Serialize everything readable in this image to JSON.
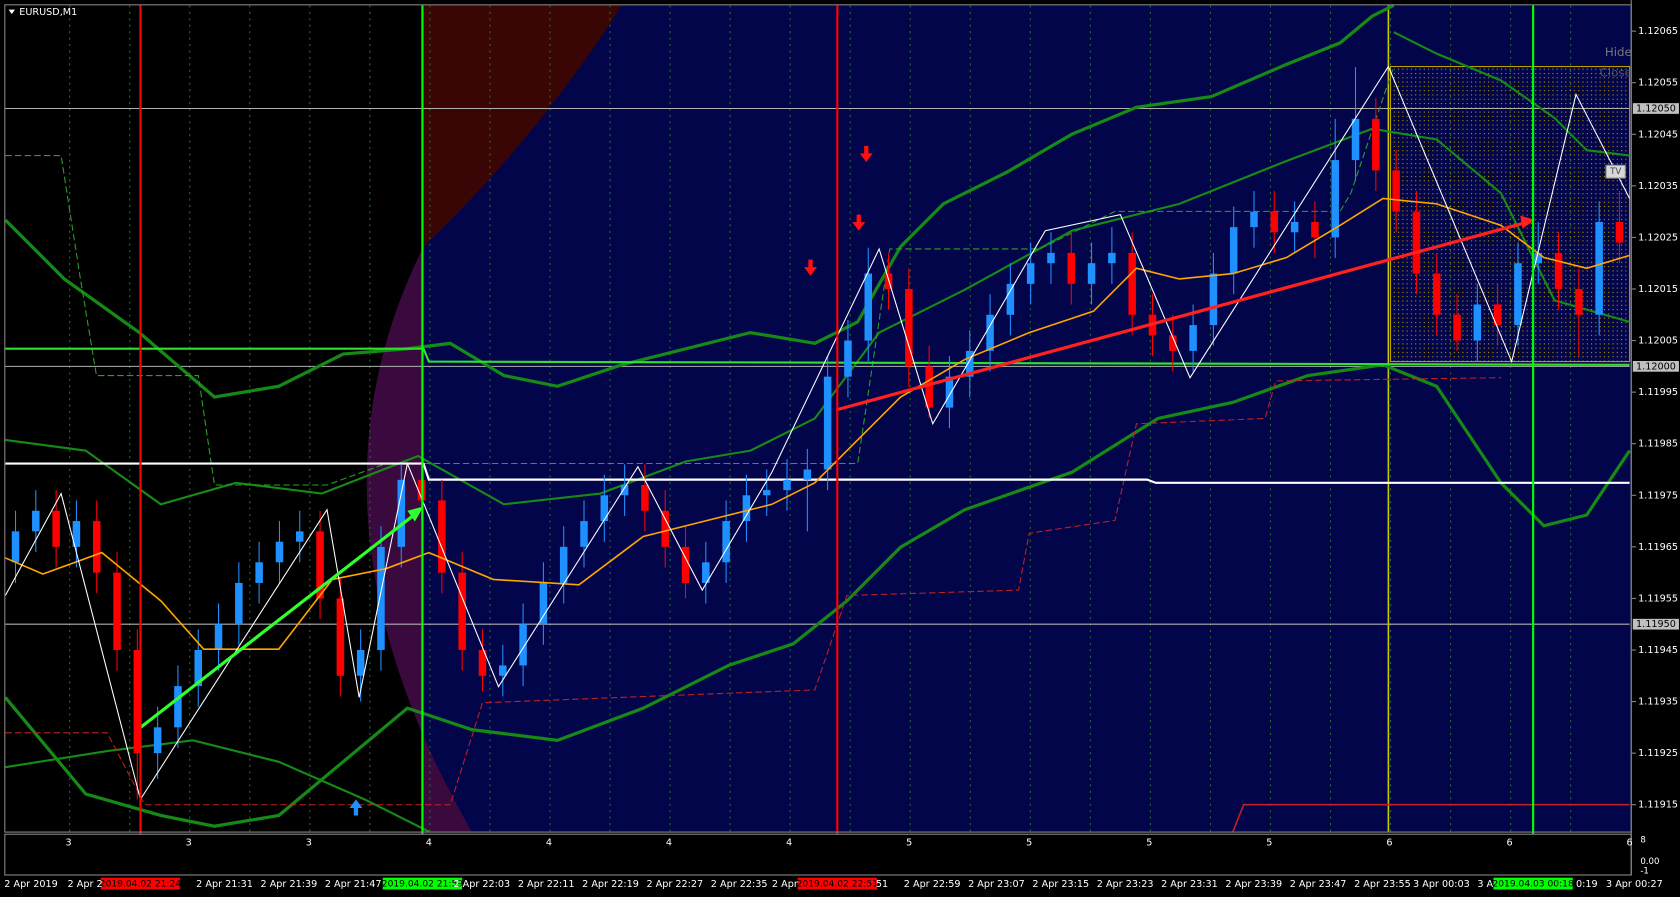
{
  "chart_data": {
    "type": "candlestick",
    "title": "EURUSD,M1",
    "colors": {
      "up": "#1e90ff",
      "down": "#ff0000"
    },
    "ylim": [
      1.1191,
      1.1207
    ],
    "yticks": [
      1.12065,
      1.12055,
      1.12045,
      1.12035,
      1.12025,
      1.12015,
      1.12005,
      1.11995,
      1.11985,
      1.11975,
      1.11965,
      1.11955,
      1.11945,
      1.11935,
      1.11925,
      1.11915
    ],
    "hlines": [
      {
        "value": 1.1205,
        "label": "1.12050"
      },
      {
        "value": 1.12,
        "label": "1.12000"
      },
      {
        "value": 1.1195,
        "label": "1.11950"
      }
    ],
    "candles": [
      [
        1.11962,
        1.11972,
        1.11958,
        1.11968
      ],
      [
        1.11968,
        1.11976,
        1.11964,
        1.11972
      ],
      [
        1.11972,
        1.11976,
        1.11961,
        1.11965
      ],
      [
        1.11965,
        1.11974,
        1.11961,
        1.1197
      ],
      [
        1.1197,
        1.11974,
        1.11956,
        1.1196
      ],
      [
        1.1196,
        1.11964,
        1.11941,
        1.11945
      ],
      [
        1.11945,
        1.11949,
        1.11916,
        1.11925
      ],
      [
        1.11925,
        1.11934,
        1.1192,
        1.1193
      ],
      [
        1.1193,
        1.11942,
        1.11926,
        1.11938
      ],
      [
        1.11938,
        1.11949,
        1.11934,
        1.11945
      ],
      [
        1.11945,
        1.11954,
        1.11941,
        1.1195
      ],
      [
        1.1195,
        1.11962,
        1.11946,
        1.11958
      ],
      [
        1.11958,
        1.11966,
        1.11954,
        1.11962
      ],
      [
        1.11962,
        1.1197,
        1.11958,
        1.11966
      ],
      [
        1.11966,
        1.11972,
        1.11962,
        1.11968
      ],
      [
        1.11968,
        1.11972,
        1.11951,
        1.11955
      ],
      [
        1.11955,
        1.11959,
        1.11936,
        1.1194
      ],
      [
        1.1194,
        1.11949,
        1.11935,
        1.11945
      ],
      [
        1.11945,
        1.11969,
        1.11941,
        1.11965
      ],
      [
        1.11965,
        1.11981,
        1.11961,
        1.11978
      ],
      [
        1.11978,
        1.11981,
        1.1197,
        1.11974
      ],
      [
        1.11974,
        1.11978,
        1.11956,
        1.1196
      ],
      [
        1.1196,
        1.11964,
        1.11941,
        1.11945
      ],
      [
        1.11945,
        1.11949,
        1.11937,
        1.1194
      ],
      [
        1.1194,
        1.11946,
        1.11936,
        1.11942
      ],
      [
        1.11942,
        1.11954,
        1.11938,
        1.1195
      ],
      [
        1.1195,
        1.11962,
        1.11946,
        1.11958
      ],
      [
        1.11958,
        1.11969,
        1.11954,
        1.11965
      ],
      [
        1.11965,
        1.11974,
        1.11961,
        1.1197
      ],
      [
        1.1197,
        1.11979,
        1.11966,
        1.11975
      ],
      [
        1.11975,
        1.11981,
        1.11971,
        1.11977
      ],
      [
        1.11977,
        1.11981,
        1.11968,
        1.11972
      ],
      [
        1.11972,
        1.11976,
        1.11961,
        1.11965
      ],
      [
        1.11965,
        1.11969,
        1.11955,
        1.11958
      ],
      [
        1.11958,
        1.11966,
        1.11954,
        1.11962
      ],
      [
        1.11962,
        1.11974,
        1.11958,
        1.1197
      ],
      [
        1.1197,
        1.11979,
        1.11966,
        1.11975
      ],
      [
        1.11975,
        1.1198,
        1.11971,
        1.11976
      ],
      [
        1.11976,
        1.11982,
        1.11972,
        1.11978
      ],
      [
        1.11978,
        1.11984,
        1.11968,
        1.1198
      ],
      [
        1.1198,
        1.12002,
        1.11976,
        1.11998
      ],
      [
        1.11998,
        1.12009,
        1.11994,
        1.12005
      ],
      [
        1.12005,
        1.12023,
        1.12001,
        1.12018
      ],
      [
        1.12018,
        1.12022,
        1.12011,
        1.12015
      ],
      [
        1.12015,
        1.12019,
        1.11996,
        1.12
      ],
      [
        1.12,
        1.12004,
        1.1199,
        1.11992
      ],
      [
        1.11992,
        1.12002,
        1.11988,
        1.11998
      ],
      [
        1.11998,
        1.12007,
        1.11994,
        1.12003
      ],
      [
        1.12003,
        1.12014,
        1.11999,
        1.1201
      ],
      [
        1.1201,
        1.1202,
        1.12006,
        1.12016
      ],
      [
        1.12016,
        1.12024,
        1.12012,
        1.1202
      ],
      [
        1.1202,
        1.12026,
        1.12016,
        1.12022
      ],
      [
        1.12022,
        1.12026,
        1.12012,
        1.12016
      ],
      [
        1.12016,
        1.12024,
        1.12012,
        1.1202
      ],
      [
        1.1202,
        1.12027,
        1.12016,
        1.12022
      ],
      [
        1.12022,
        1.12026,
        1.12006,
        1.1201
      ],
      [
        1.1201,
        1.12014,
        1.12002,
        1.12006
      ],
      [
        1.12006,
        1.1201,
        1.11999,
        1.12003
      ],
      [
        1.12003,
        1.12012,
        1.11999,
        1.12008
      ],
      [
        1.12008,
        1.12022,
        1.12004,
        1.12018
      ],
      [
        1.12018,
        1.12031,
        1.12014,
        1.12027
      ],
      [
        1.12027,
        1.12034,
        1.12023,
        1.1203
      ],
      [
        1.1203,
        1.12034,
        1.12022,
        1.12026
      ],
      [
        1.12026,
        1.12032,
        1.12022,
        1.12028
      ],
      [
        1.12028,
        1.12032,
        1.12021,
        1.12025
      ],
      [
        1.12025,
        1.12048,
        1.12021,
        1.1204
      ],
      [
        1.1204,
        1.12058,
        1.12036,
        1.12048
      ],
      [
        1.12048,
        1.12052,
        1.12034,
        1.12038
      ],
      [
        1.12038,
        1.12042,
        1.12026,
        1.1203
      ],
      [
        1.1203,
        1.12034,
        1.12014,
        1.12018
      ],
      [
        1.12018,
        1.12022,
        1.12006,
        1.1201
      ],
      [
        1.1201,
        1.12014,
        1.12003,
        1.12005
      ],
      [
        1.12005,
        1.12016,
        1.12001,
        1.12012
      ],
      [
        1.12012,
        1.12016,
        1.12004,
        1.12008
      ],
      [
        1.12008,
        1.12024,
        1.12004,
        1.1202
      ],
      [
        1.1202,
        1.12028,
        1.12016,
        1.12022
      ],
      [
        1.12022,
        1.12026,
        1.12011,
        1.12015
      ],
      [
        1.12015,
        1.12019,
        1.12002,
        1.1201
      ],
      [
        1.1201,
        1.12032,
        1.12006,
        1.12028
      ],
      [
        1.12028,
        1.12034,
        1.1202,
        1.12024
      ]
    ],
    "time_labels": [
      "2 Apr 2019",
      "2 Apr 2",
      "2 Apr 21:31",
      "2 Apr 21:39",
      "2 Apr 21:47",
      "2 Apr 22:03",
      "2 Apr 22:11",
      "2 Apr 22:19",
      "2 Apr 22:27",
      "2 Apr 22:35",
      "2 Apr",
      "51",
      "2 Apr 22:59",
      "2 Apr 23:07",
      "2 Apr 23:15",
      "2 Apr 23:23",
      "2 Apr 23:31",
      "2 Apr 23:39",
      "2 Apr 23:47",
      "2 Apr 23:55",
      "3 Apr 00:03",
      "3 A",
      "0:19",
      "3 Apr 00:27"
    ],
    "vlines": [
      {
        "label": "2019.04.02 21:24",
        "color": "#ff0000"
      },
      {
        "label": "2019.04.02 21:59",
        "color": "#00ff00"
      },
      {
        "label": "2019.04.02 22:51",
        "color": "#ff0000"
      },
      {
        "label": "2019.04.03 00:18",
        "color": "#00ff00"
      }
    ],
    "sub_labels": [
      "3",
      "3",
      "3",
      "4",
      "4",
      "4",
      "4",
      "5",
      "5",
      "5",
      "5",
      "6",
      "6",
      "6"
    ],
    "sub_axis": [
      "8",
      "0.00",
      "-1"
    ]
  },
  "buttons": [
    "Hide",
    "Close",
    "TV"
  ]
}
